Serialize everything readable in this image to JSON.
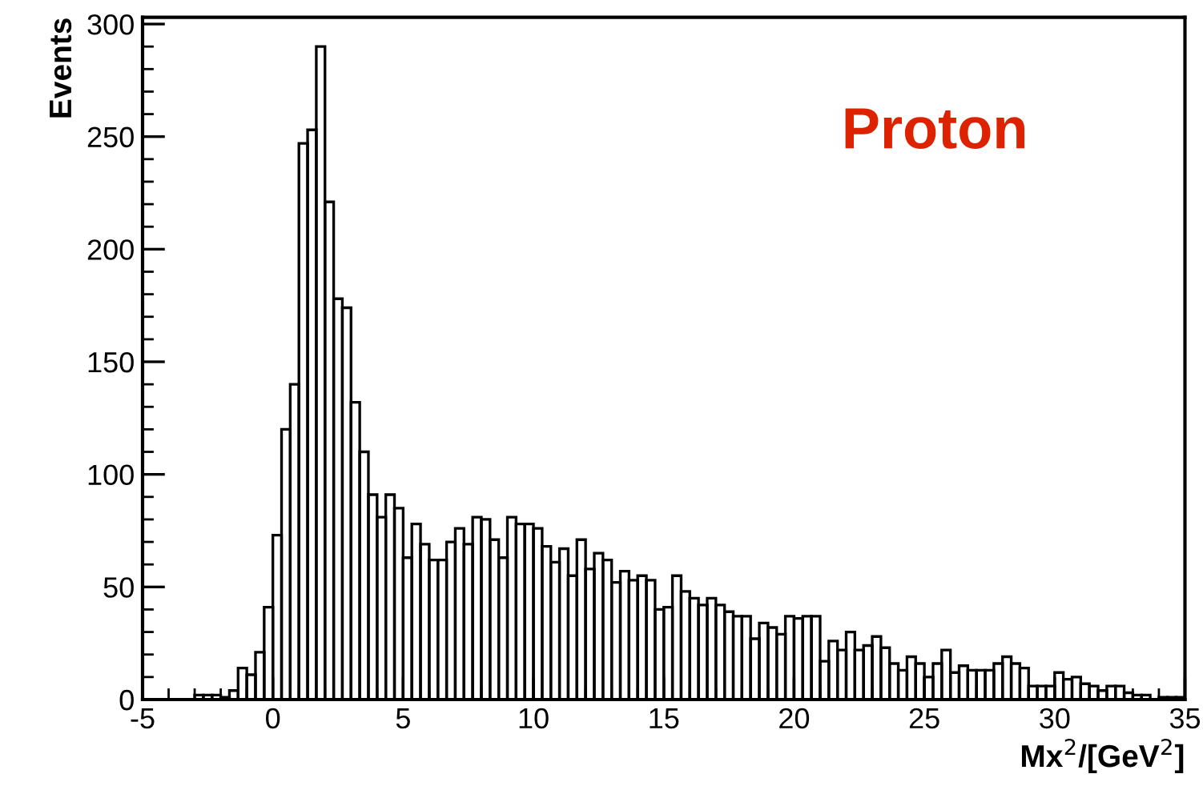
{
  "chart_data": {
    "type": "histogram",
    "xlabel": "Mx$^{2}$/[GeV$^{2}$]",
    "ylabel": "Events",
    "annotations": [
      "Proton"
    ],
    "color": "#000000",
    "bins": [
      -5,
      -4.6667,
      -4.3333,
      -4,
      -3.6667,
      -3.3333,
      -3,
      -2.6667,
      -2.3333,
      -2,
      -1.6667,
      -1.3333,
      -1,
      -0.6667,
      -0.3333,
      0,
      0.3333,
      0.6667,
      1,
      1.3333,
      1.6667,
      2,
      2.3333,
      2.6667,
      3,
      3.3333,
      3.6667,
      4,
      4.3333,
      4.6667,
      5,
      5.3333,
      5.6667,
      6,
      6.3333,
      6.6667,
      7,
      7.3333,
      7.6667,
      8,
      8.3333,
      8.6667,
      9,
      9.3333,
      9.6667,
      10,
      10.3333,
      10.6667,
      11,
      11.3333,
      11.6667,
      12,
      12.3333,
      12.6667,
      13,
      13.3333,
      13.6667,
      14,
      14.3333,
      14.6667,
      15,
      15.3333,
      15.6667,
      16,
      16.3333,
      16.6667,
      17,
      17.3333,
      17.6667,
      18,
      18.3333,
      18.6667,
      19,
      19.3333,
      19.6667,
      20,
      20.3333,
      20.6667,
      21,
      21.3333,
      21.6667,
      22,
      22.3333,
      22.6667,
      23,
      23.3333,
      23.6667,
      24,
      24.3333,
      24.6667,
      25,
      25.3333,
      25.6667,
      26,
      26.3333,
      26.6667,
      27,
      27.3333,
      27.6667,
      28,
      28.3333,
      28.6667,
      29,
      29.3333,
      29.6667,
      30,
      30.3333,
      30.6667,
      31,
      31.3333,
      31.6667,
      32,
      32.3333,
      32.6667,
      33,
      33.3333,
      33.6667,
      34,
      34.3333,
      34.6667,
      35
    ],
    "values": [
      0,
      0,
      0,
      0,
      0,
      0,
      2,
      2,
      2,
      1,
      4,
      14,
      11,
      21,
      41,
      73,
      120,
      140,
      247,
      253,
      290,
      221,
      178,
      174,
      132,
      110,
      91,
      81,
      91,
      85,
      63,
      78,
      69,
      62,
      62,
      70,
      76,
      69,
      81,
      80,
      71,
      63,
      81,
      78,
      78,
      76,
      68,
      61,
      67,
      55,
      71,
      58,
      65,
      62,
      52,
      57,
      53,
      55,
      53,
      40,
      41,
      55,
      48,
      45,
      42,
      45,
      42,
      39,
      37,
      37,
      27,
      34,
      32,
      29,
      37,
      36,
      37,
      37,
      17,
      26,
      22,
      30,
      22,
      24,
      28,
      23,
      16,
      13,
      19,
      16,
      10,
      16,
      22,
      12,
      15,
      13,
      13,
      13,
      16,
      19,
      16,
      14,
      6,
      6,
      6,
      12,
      9,
      10,
      7,
      6,
      4,
      6,
      6,
      3,
      2,
      2,
      0,
      1,
      1,
      1
    ],
    "xlim": [
      -5,
      35
    ],
    "ylim": [
      0,
      303
    ],
    "xticks": [
      -5,
      0,
      5,
      10,
      15,
      20,
      25,
      30,
      35
    ],
    "yticks": [
      0,
      50,
      100,
      150,
      200,
      250,
      300
    ],
    "grid": false,
    "legend": false
  }
}
